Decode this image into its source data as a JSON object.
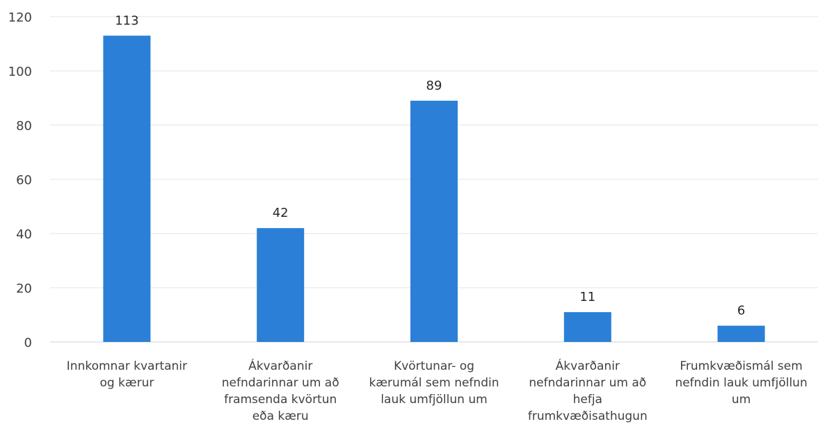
{
  "chart_data": {
    "type": "bar",
    "title": "",
    "xlabel": "",
    "ylabel": "",
    "ylim": [
      0,
      120
    ],
    "yticks": [
      0,
      20,
      40,
      60,
      80,
      100,
      120
    ],
    "grid": true,
    "legend": "none",
    "bar_color": "#2b7fd6",
    "categories": [
      [
        "Innkomnar kvartanir",
        "og kærur"
      ],
      [
        "Ákvarðanir",
        "nefndarinnar um að",
        "framsenda kvörtun",
        "eða kæru"
      ],
      [
        "Kvörtunar- og",
        "kærumál sem nefndin",
        "lauk umfjöllun um"
      ],
      [
        "Ákvarðanir",
        "nefndarinnar um að",
        "hefja",
        "frumkvæðisathugun"
      ],
      [
        "Frumkvæðismál sem",
        "nefndin lauk umfjöllun",
        "um"
      ]
    ],
    "values": [
      113,
      42,
      89,
      11,
      6
    ]
  }
}
